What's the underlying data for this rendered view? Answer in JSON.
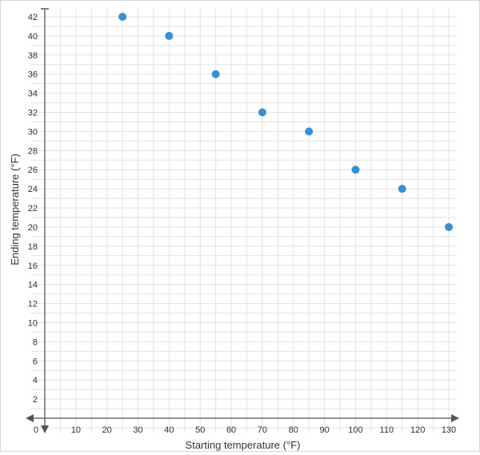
{
  "chart_data": {
    "type": "scatter",
    "title": "",
    "xlabel": "Starting temperature (°F)",
    "ylabel": "Ending temperature (°F)",
    "xlim": [
      0,
      135
    ],
    "ylim": [
      0,
      42
    ],
    "x_ticks": [
      10,
      20,
      30,
      40,
      50,
      60,
      70,
      80,
      90,
      100,
      110,
      120,
      130
    ],
    "y_ticks": [
      2,
      4,
      6,
      8,
      10,
      12,
      14,
      16,
      18,
      20,
      22,
      24,
      26,
      28,
      30,
      32,
      34,
      36,
      38,
      40,
      42
    ],
    "origin_label": "0",
    "grid": true,
    "grid_minor_step_x": 5,
    "grid_minor_step_y": 1,
    "point_color": "#3a8fd0",
    "series": [
      {
        "x": [
          25,
          40,
          55,
          70,
          85,
          100,
          115,
          130
        ],
        "y": [
          42,
          40,
          36,
          32,
          30,
          26,
          24,
          20
        ]
      }
    ]
  }
}
